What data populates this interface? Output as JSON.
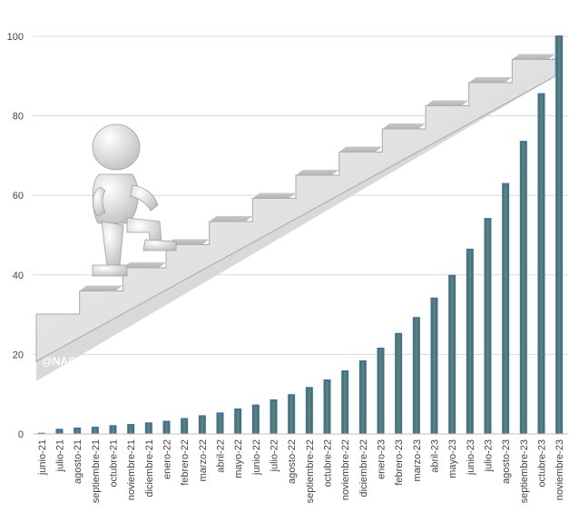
{
  "watermark": "@NACHO REDONDO",
  "chart_data": {
    "type": "bar",
    "title": "",
    "xlabel": "",
    "ylabel": "",
    "ylim": [
      0,
      100
    ],
    "yticks": [
      0,
      20,
      40,
      60,
      80,
      100
    ],
    "grid": true,
    "bar_color": "#3f6faa",
    "bar_inner_color": "#5f8f3e",
    "categories": [
      "junio-21",
      "julio-21",
      "agosto-21",
      "septiembre-21",
      "octubre-21",
      "noviembre-21",
      "diciembre-21",
      "enero-22",
      "febrero-22",
      "marzo-22",
      "abril-22",
      "mayo-22",
      "junio-22",
      "julio-22",
      "agosto-22",
      "septiembre-22",
      "octubre-22",
      "noviembre-22",
      "diciembre-22",
      "enero-23",
      "febrero-23",
      "marzo-23",
      "abril-23",
      "mayo-23",
      "junio-23",
      "julio-23",
      "agosto-23",
      "septiembre-23",
      "octubre-23",
      "noviembre-23"
    ],
    "values": [
      0.3,
      1.3,
      1.6,
      1.8,
      2.2,
      2.5,
      2.9,
      3.3,
      4.0,
      4.7,
      5.4,
      6.4,
      7.4,
      8.7,
      10.0,
      11.8,
      13.7,
      16.0,
      18.5,
      21.7,
      25.4,
      29.4,
      34.3,
      40.0,
      46.6,
      54.3,
      63.1,
      73.7,
      85.7,
      100.2
    ]
  }
}
